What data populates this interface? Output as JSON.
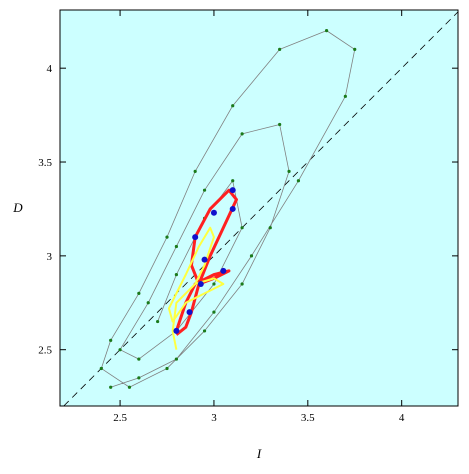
{
  "chart_data": {
    "type": "line",
    "x_label": "I",
    "y_label": "D",
    "xlim": [
      2.18,
      4.3
    ],
    "ylim": [
      2.2,
      4.31
    ],
    "xticks": [
      2.5,
      3,
      3.5,
      4
    ],
    "yticks": [
      2.5,
      3,
      3.5,
      4
    ],
    "background": "#ccffff",
    "series": [
      {
        "color": "#1a7a1a",
        "line_color": "#808080",
        "line_width": 0.8,
        "marker_size": 1.6,
        "x": [
          2.45,
          2.6,
          2.8,
          3.0,
          3.2,
          3.45,
          3.7,
          3.75,
          3.6,
          3.35,
          3.1,
          2.9,
          2.75,
          2.6,
          2.45,
          2.4,
          2.55,
          2.75,
          2.95,
          3.15,
          3.3,
          3.4,
          3.35,
          3.15,
          2.95,
          2.8,
          2.65,
          2.5,
          2.6,
          2.8,
          3.0,
          3.15,
          3.1,
          2.95,
          2.8,
          2.7
        ],
        "values": [
          2.3,
          2.35,
          2.45,
          2.7,
          3.0,
          3.4,
          3.85,
          4.1,
          4.2,
          4.1,
          3.8,
          3.45,
          3.1,
          2.8,
          2.55,
          2.4,
          2.3,
          2.4,
          2.6,
          2.85,
          3.15,
          3.45,
          3.7,
          3.65,
          3.35,
          3.05,
          2.75,
          2.5,
          2.45,
          2.6,
          2.85,
          3.15,
          3.4,
          3.2,
          2.9,
          2.65
        ]
      },
      {
        "color": "#ff2020",
        "line_width": 3,
        "x": [
          2.8,
          2.85,
          2.9,
          3.0,
          3.08,
          3.0,
          2.92,
          2.88,
          2.9,
          2.98,
          3.08,
          3.12,
          3.05,
          2.98,
          2.92,
          2.88,
          2.85,
          2.8
        ],
        "values": [
          2.6,
          2.75,
          2.85,
          2.9,
          2.92,
          2.88,
          2.85,
          2.95,
          3.1,
          3.25,
          3.35,
          3.3,
          3.15,
          3.0,
          2.85,
          2.7,
          2.62,
          2.58
        ]
      },
      {
        "color": "#ffff40",
        "line_width": 2,
        "x": [
          2.8,
          2.78,
          2.8,
          2.9,
          3.0,
          3.05,
          2.95,
          2.85,
          2.78,
          2.76,
          2.85,
          2.92,
          2.98,
          3.0,
          2.95,
          2.9
        ],
        "values": [
          2.5,
          2.6,
          2.75,
          2.85,
          2.88,
          2.85,
          2.8,
          2.75,
          2.65,
          2.72,
          2.9,
          3.05,
          3.15,
          3.1,
          2.95,
          2.85
        ]
      },
      {
        "color": "#1010cc",
        "marker_size": 3,
        "x": [
          2.8,
          2.87,
          2.93,
          3.05,
          2.9,
          3.0,
          3.1,
          3.1,
          2.95
        ],
        "values": [
          2.6,
          2.7,
          2.85,
          2.92,
          3.1,
          3.23,
          3.35,
          3.25,
          2.98
        ]
      }
    ]
  }
}
